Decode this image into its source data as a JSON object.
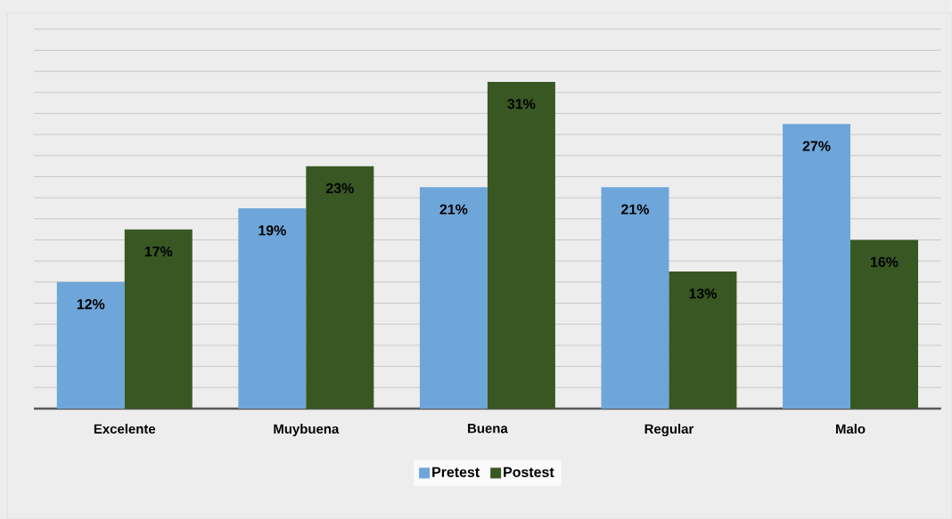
{
  "chart_data": {
    "type": "bar",
    "categories": [
      "Excelente",
      "Muybuena",
      "Buena",
      "Regular",
      "Malo"
    ],
    "series": [
      {
        "name": "Pretest",
        "color": "#6fa6da",
        "values": [
          12,
          19,
          21,
          21,
          27
        ],
        "value_labels": [
          "12%",
          "19%",
          "21%",
          "21%",
          "27%"
        ]
      },
      {
        "name": "Postest",
        "color": "#385723",
        "values": [
          17,
          23,
          31,
          13,
          16
        ],
        "value_labels": [
          "17%",
          "23%",
          "31%",
          "13%",
          "16%"
        ]
      }
    ],
    "ylim": [
      0,
      37.5
    ],
    "tick_labels": "x",
    "grid": "y",
    "legend": "bottom"
  }
}
